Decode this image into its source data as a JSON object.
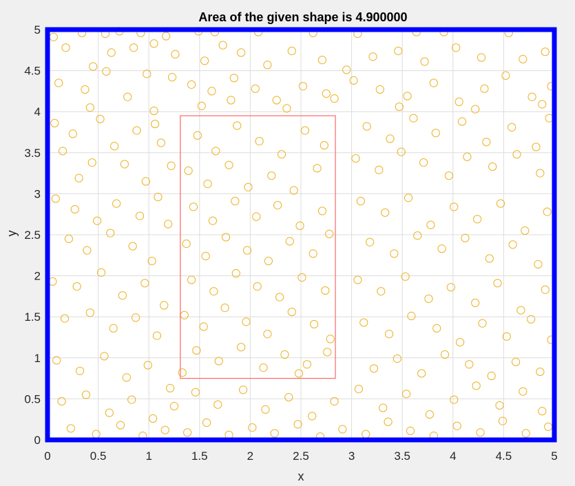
{
  "chart_data": {
    "type": "scatter",
    "title": "Area of the given shape is 4.900000",
    "xlabel": "x",
    "ylabel": "y",
    "xlim": [
      0,
      5
    ],
    "ylim": [
      0,
      5
    ],
    "xticks": [
      0,
      0.5,
      1,
      1.5,
      2,
      2.5,
      3,
      3.5,
      4,
      4.5,
      5
    ],
    "yticks": [
      0,
      0.5,
      1,
      1.5,
      2,
      2.5,
      3,
      3.5,
      4,
      4.5,
      5
    ],
    "xtick_labels": [
      "0",
      "0.5",
      "1",
      "1.5",
      "2",
      "2.5",
      "3",
      "3.5",
      "4",
      "4.5",
      "5"
    ],
    "ytick_labels": [
      "0",
      "0.5",
      "1",
      "1.5",
      "2",
      "2.5",
      "3",
      "3.5",
      "4",
      "4.5",
      "5"
    ],
    "grid": true,
    "domain_box": {
      "x": [
        0,
        5
      ],
      "y": [
        0,
        5
      ],
      "color": "#0000ff"
    },
    "shape_rect": {
      "x": [
        1.31,
        2.84
      ],
      "y": [
        0.75,
        3.95
      ],
      "color": "#ff6666"
    },
    "marker_color": "#edb120",
    "points": [
      [
        0.06,
        4.91
      ],
      [
        0.34,
        4.96
      ],
      [
        0.57,
        4.95
      ],
      [
        0.71,
        4.98
      ],
      [
        0.92,
        4.96
      ],
      [
        1.17,
        4.92
      ],
      [
        1.49,
        4.98
      ],
      [
        1.65,
        4.97
      ],
      [
        2.08,
        4.97
      ],
      [
        2.62,
        4.96
      ],
      [
        3.06,
        4.95
      ],
      [
        3.64,
        4.97
      ],
      [
        3.91,
        4.97
      ],
      [
        4.55,
        4.96
      ],
      [
        0.18,
        4.78
      ],
      [
        0.45,
        4.55
      ],
      [
        0.63,
        4.72
      ],
      [
        0.85,
        4.78
      ],
      [
        1.05,
        4.83
      ],
      [
        1.26,
        4.7
      ],
      [
        1.55,
        4.62
      ],
      [
        1.73,
        4.81
      ],
      [
        1.91,
        4.72
      ],
      [
        2.17,
        4.57
      ],
      [
        2.41,
        4.74
      ],
      [
        2.71,
        4.63
      ],
      [
        2.95,
        4.51
      ],
      [
        3.21,
        4.67
      ],
      [
        3.46,
        4.74
      ],
      [
        3.72,
        4.61
      ],
      [
        4.03,
        4.78
      ],
      [
        4.28,
        4.66
      ],
      [
        4.69,
        4.64
      ],
      [
        4.91,
        4.73
      ],
      [
        0.11,
        4.35
      ],
      [
        0.37,
        4.27
      ],
      [
        0.58,
        4.49
      ],
      [
        0.79,
        4.18
      ],
      [
        0.98,
        4.46
      ],
      [
        1.23,
        4.42
      ],
      [
        1.42,
        4.33
      ],
      [
        1.62,
        4.25
      ],
      [
        1.84,
        4.41
      ],
      [
        2.05,
        4.28
      ],
      [
        2.26,
        4.14
      ],
      [
        2.52,
        4.31
      ],
      [
        2.75,
        4.22
      ],
      [
        3.02,
        4.38
      ],
      [
        3.28,
        4.27
      ],
      [
        3.55,
        4.19
      ],
      [
        3.81,
        4.35
      ],
      [
        4.06,
        4.12
      ],
      [
        4.31,
        4.28
      ],
      [
        4.52,
        4.44
      ],
      [
        4.78,
        4.18
      ],
      [
        4.97,
        4.31
      ],
      [
        0.07,
        3.86
      ],
      [
        0.25,
        3.73
      ],
      [
        0.52,
        3.91
      ],
      [
        0.66,
        3.58
      ],
      [
        0.88,
        3.77
      ],
      [
        1.06,
        3.85
      ],
      [
        1.22,
        3.34
      ],
      [
        1.12,
        3.62
      ],
      [
        0.44,
        3.38
      ],
      [
        0.15,
        3.52
      ],
      [
        0.31,
        3.19
      ],
      [
        0.76,
        3.36
      ],
      [
        0.97,
        3.15
      ],
      [
        3.15,
        3.82
      ],
      [
        3.38,
        3.67
      ],
      [
        3.61,
        3.92
      ],
      [
        3.83,
        3.74
      ],
      [
        4.09,
        3.88
      ],
      [
        4.33,
        3.63
      ],
      [
        4.58,
        3.81
      ],
      [
        4.82,
        3.57
      ],
      [
        4.95,
        3.92
      ],
      [
        3.04,
        3.43
      ],
      [
        3.27,
        3.29
      ],
      [
        3.49,
        3.51
      ],
      [
        3.71,
        3.38
      ],
      [
        3.96,
        3.22
      ],
      [
        4.14,
        3.45
      ],
      [
        4.39,
        3.33
      ],
      [
        4.63,
        3.48
      ],
      [
        4.86,
        3.25
      ],
      [
        0.08,
        2.94
      ],
      [
        0.27,
        2.81
      ],
      [
        0.49,
        2.67
      ],
      [
        0.68,
        2.88
      ],
      [
        0.91,
        2.73
      ],
      [
        1.09,
        2.96
      ],
      [
        0.21,
        2.45
      ],
      [
        0.39,
        2.31
      ],
      [
        0.62,
        2.52
      ],
      [
        0.84,
        2.36
      ],
      [
        1.03,
        2.18
      ],
      [
        1.19,
        2.63
      ],
      [
        3.09,
        2.91
      ],
      [
        3.33,
        2.77
      ],
      [
        3.56,
        2.95
      ],
      [
        3.78,
        2.62
      ],
      [
        4.01,
        2.84
      ],
      [
        4.24,
        2.69
      ],
      [
        4.47,
        2.88
      ],
      [
        4.71,
        2.55
      ],
      [
        4.93,
        2.78
      ],
      [
        3.18,
        2.41
      ],
      [
        3.42,
        2.27
      ],
      [
        3.65,
        2.49
      ],
      [
        3.89,
        2.33
      ],
      [
        4.12,
        2.46
      ],
      [
        4.36,
        2.21
      ],
      [
        4.59,
        2.38
      ],
      [
        4.84,
        2.14
      ],
      [
        0.05,
        1.93
      ],
      [
        0.29,
        1.87
      ],
      [
        0.53,
        2.04
      ],
      [
        0.74,
        1.76
      ],
      [
        0.96,
        1.91
      ],
      [
        1.15,
        1.64
      ],
      [
        0.17,
        1.48
      ],
      [
        0.42,
        1.55
      ],
      [
        0.65,
        1.36
      ],
      [
        0.87,
        1.49
      ],
      [
        1.08,
        1.27
      ],
      [
        3.06,
        1.95
      ],
      [
        3.29,
        1.81
      ],
      [
        3.53,
        1.99
      ],
      [
        3.76,
        1.72
      ],
      [
        3.98,
        1.86
      ],
      [
        4.22,
        1.67
      ],
      [
        4.44,
        1.91
      ],
      [
        4.67,
        1.58
      ],
      [
        4.91,
        1.83
      ],
      [
        3.12,
        1.43
      ],
      [
        3.37,
        1.29
      ],
      [
        3.59,
        1.51
      ],
      [
        3.84,
        1.36
      ],
      [
        4.07,
        1.19
      ],
      [
        4.29,
        1.42
      ],
      [
        4.53,
        1.26
      ],
      [
        4.77,
        1.47
      ],
      [
        4.97,
        1.22
      ],
      [
        0.09,
        0.97
      ],
      [
        0.32,
        0.84
      ],
      [
        0.56,
        1.02
      ],
      [
        0.78,
        0.76
      ],
      [
        0.99,
        0.91
      ],
      [
        1.21,
        0.63
      ],
      [
        0.14,
        0.47
      ],
      [
        0.38,
        0.55
      ],
      [
        0.61,
        0.33
      ],
      [
        0.83,
        0.49
      ],
      [
        1.04,
        0.26
      ],
      [
        1.25,
        0.41
      ],
      [
        0.23,
        0.14
      ],
      [
        0.48,
        0.07
      ],
      [
        0.72,
        0.18
      ],
      [
        0.94,
        0.05
      ],
      [
        1.16,
        0.12
      ],
      [
        1.38,
        0.09
      ],
      [
        1.57,
        0.21
      ],
      [
        1.79,
        0.06
      ],
      [
        2.02,
        0.15
      ],
      [
        2.24,
        0.08
      ],
      [
        2.47,
        0.19
      ],
      [
        2.69,
        0.04
      ],
      [
        2.91,
        0.13
      ],
      [
        3.14,
        0.07
      ],
      [
        3.36,
        0.22
      ],
      [
        3.58,
        0.11
      ],
      [
        3.81,
        0.05
      ],
      [
        4.04,
        0.17
      ],
      [
        4.27,
        0.09
      ],
      [
        4.49,
        0.23
      ],
      [
        4.72,
        0.08
      ],
      [
        4.94,
        0.16
      ],
      [
        1.46,
        0.58
      ],
      [
        1.68,
        0.43
      ],
      [
        1.93,
        0.61
      ],
      [
        2.15,
        0.37
      ],
      [
        2.38,
        0.52
      ],
      [
        2.61,
        0.29
      ],
      [
        2.83,
        0.47
      ],
      [
        3.07,
        0.62
      ],
      [
        3.31,
        0.39
      ],
      [
        3.54,
        0.56
      ],
      [
        3.77,
        0.31
      ],
      [
        4.01,
        0.49
      ],
      [
        4.23,
        0.66
      ],
      [
        4.46,
        0.42
      ],
      [
        4.69,
        0.59
      ],
      [
        4.88,
        0.35
      ],
      [
        3.22,
        0.87
      ],
      [
        3.45,
        0.99
      ],
      [
        3.69,
        0.81
      ],
      [
        3.92,
        1.04
      ],
      [
        4.16,
        0.92
      ],
      [
        4.38,
        0.78
      ],
      [
        4.62,
        0.95
      ],
      [
        4.86,
        0.83
      ],
      [
        1.48,
        3.71
      ],
      [
        1.66,
        3.52
      ],
      [
        1.87,
        3.83
      ],
      [
        2.09,
        3.64
      ],
      [
        2.31,
        3.48
      ],
      [
        2.54,
        3.77
      ],
      [
        2.73,
        3.59
      ],
      [
        1.39,
        3.28
      ],
      [
        1.58,
        3.12
      ],
      [
        1.79,
        3.35
      ],
      [
        1.98,
        3.08
      ],
      [
        2.21,
        3.22
      ],
      [
        2.43,
        3.04
      ],
      [
        2.66,
        3.31
      ],
      [
        1.44,
        2.84
      ],
      [
        1.63,
        2.67
      ],
      [
        1.85,
        2.91
      ],
      [
        2.06,
        2.72
      ],
      [
        2.27,
        2.86
      ],
      [
        2.49,
        2.61
      ],
      [
        2.71,
        2.79
      ],
      [
        1.37,
        2.39
      ],
      [
        1.56,
        2.24
      ],
      [
        1.76,
        2.47
      ],
      [
        1.97,
        2.31
      ],
      [
        2.18,
        2.18
      ],
      [
        2.39,
        2.42
      ],
      [
        2.62,
        2.27
      ],
      [
        2.78,
        2.51
      ],
      [
        1.42,
        1.95
      ],
      [
        1.64,
        1.81
      ],
      [
        1.86,
        2.03
      ],
      [
        2.07,
        1.87
      ],
      [
        2.29,
        1.74
      ],
      [
        2.51,
        1.98
      ],
      [
        2.74,
        1.82
      ],
      [
        1.35,
        1.52
      ],
      [
        1.54,
        1.38
      ],
      [
        1.75,
        1.61
      ],
      [
        1.96,
        1.44
      ],
      [
        2.17,
        1.29
      ],
      [
        2.41,
        1.56
      ],
      [
        2.63,
        1.41
      ],
      [
        2.79,
        1.23
      ],
      [
        1.47,
        1.09
      ],
      [
        1.69,
        0.96
      ],
      [
        1.91,
        1.13
      ],
      [
        2.13,
        0.88
      ],
      [
        2.34,
        1.04
      ],
      [
        2.56,
        0.92
      ],
      [
        2.76,
        1.07
      ],
      [
        1.33,
        0.82
      ],
      [
        2.48,
        0.81
      ],
      [
        1.52,
        4.07
      ],
      [
        1.81,
        4.14
      ],
      [
        2.36,
        4.04
      ],
      [
        2.83,
        4.16
      ],
      [
        0.42,
        4.05
      ],
      [
        1.05,
        4.01
      ],
      [
        3.47,
        4.06
      ],
      [
        4.22,
        4.03
      ],
      [
        4.88,
        4.09
      ]
    ]
  }
}
